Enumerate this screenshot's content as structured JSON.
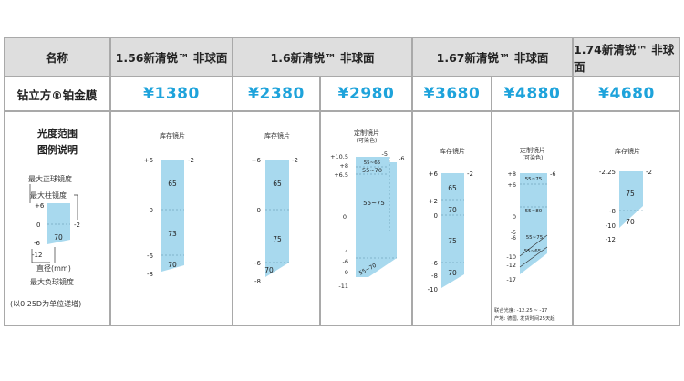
{
  "header": {
    "name_label": "名称",
    "products": [
      "1.56新清锐™ 非球面",
      "1.6新清锐™ 非球面",
      "1.67新清锐™ 非球面",
      "1.74新清锐™ 非球面"
    ]
  },
  "coating": {
    "label": "钻立方®铂金膜",
    "prices": [
      "¥1380",
      "¥2380",
      "¥2980",
      "¥3680",
      "¥4880",
      "¥4680"
    ]
  },
  "legend": {
    "title_line1": "光度范围",
    "title_line2": "图例说明",
    "max_sphere": "最大正球镜度",
    "max_cyl": "最大柱镜度",
    "diameter": "直径(mm)",
    "max_minus": "最大负球镜度",
    "step_note": "(以0.25D为单位递增)",
    "num_plus6": "+6",
    "num_0": "0",
    "num_minus6": "-6",
    "num_minus12": "-12",
    "num_minus2": "-2",
    "num_70": "70"
  },
  "diagrams": {
    "d1": {
      "title": "库存镜片",
      "cyl": "-2",
      "sph_top": "+6",
      "sph_0": "0",
      "sph_m6": "-6",
      "sph_m8": "-8",
      "zone1": "65",
      "zone2": "73",
      "zone3": "70"
    },
    "d2": {
      "title": "库存镜片",
      "cyl": "-2",
      "sph_top": "+6",
      "sph_0": "0",
      "sph_m6": "-6",
      "sph_m8": "-8",
      "zone1": "65",
      "zone2": "75",
      "zone3": "70"
    },
    "d3": {
      "title": "定制镜片",
      "subtitle": "(可染色)",
      "cyl1": "-5",
      "cyl2": "-6",
      "sph_a": "+10.5",
      "sph_b": "+8",
      "sph_c": "+6.5",
      "sph_0": "0",
      "sph_d": "-4",
      "sph_e": "-6",
      "sph_f": "-9",
      "sph_g": "-11",
      "zone1": "55~65",
      "zone2": "55~70",
      "zone3": "55~75",
      "zone4": "55~70"
    },
    "d4": {
      "title": "库存镜片",
      "cyl": "-2",
      "sph_top": "+6",
      "sph_2": "+2",
      "sph_0": "0",
      "sph_m6": "-6",
      "sph_m8": "-8",
      "sph_m10": "-10",
      "zone1": "65",
      "zone2": "70",
      "zone3": "75",
      "zone4": "70"
    },
    "d5": {
      "title": "定制镜片",
      "subtitle": "(可染色)",
      "cyl": "-6",
      "sph_a": "+8",
      "sph_b": "+6",
      "sph_0": "0",
      "sph_c": "-5",
      "sph_d": "-6",
      "sph_e": "-10",
      "sph_f": "-12",
      "sph_g": "-17",
      "zone1": "55~75",
      "zone2": "55~80",
      "zone3": "55~75",
      "zone4": "55~65",
      "note1": "联合光度: -12.25 ~ -17",
      "note2": "产地: 德国, 发货时间25天起"
    },
    "d6": {
      "title": "库存镜片",
      "cyl": "-2",
      "sph_top": "-2.25",
      "sph_m8": "-8",
      "sph_m10": "-10",
      "sph_m12": "-12",
      "zone1": "75",
      "zone2": "70"
    }
  },
  "colors": {
    "fill": "#a8d9ee",
    "price": "#1ea3db",
    "header_bg": "#dedede"
  }
}
